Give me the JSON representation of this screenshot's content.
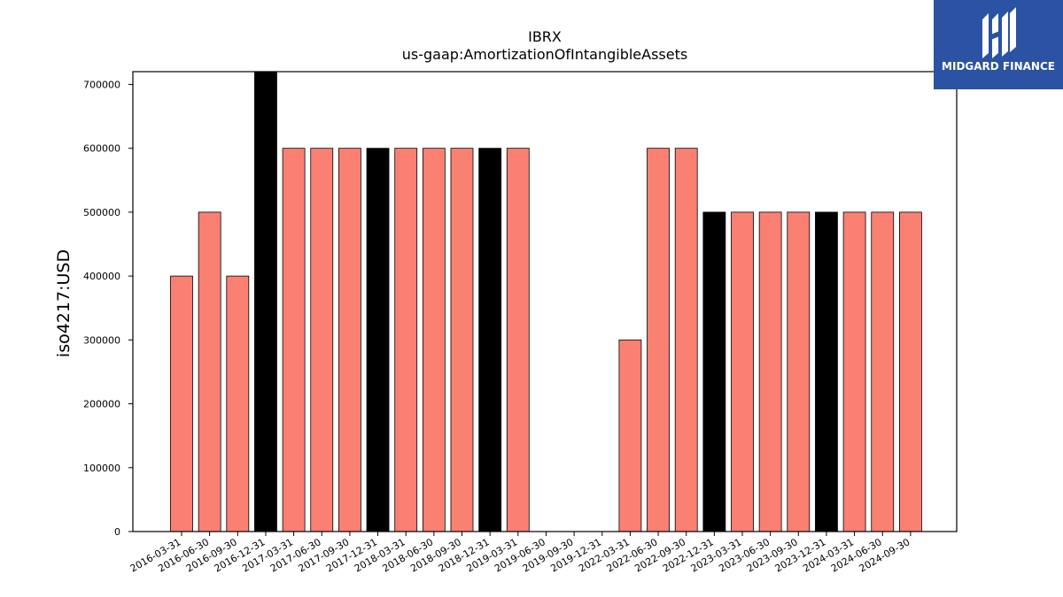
{
  "chart_data": {
    "type": "bar",
    "title": "IBRX",
    "subtitle": "us-gaap:AmortizationOfIntangibleAssets",
    "ylabel": "iso4217:USD",
    "xlabel": "",
    "ylim": [
      0,
      720000
    ],
    "yticks": [
      0,
      100000,
      200000,
      300000,
      400000,
      500000,
      600000,
      700000
    ],
    "grid": false,
    "categories": [
      "2016-03-31",
      "2016-06-30",
      "2016-09-30",
      "2016-12-31",
      "2017-03-31",
      "2017-06-30",
      "2017-09-30",
      "2017-12-31",
      "2018-03-31",
      "2018-06-30",
      "2018-09-30",
      "2018-12-31",
      "2019-03-31",
      "2019-06-30",
      "2019-09-30",
      "2019-12-31",
      "2022-03-31",
      "2022-06-30",
      "2022-09-30",
      "2022-12-31",
      "2023-03-31",
      "2023-06-30",
      "2023-09-30",
      "2023-12-31",
      "2024-03-31",
      "2024-06-30",
      "2024-09-30"
    ],
    "values": [
      400000,
      500000,
      400000,
      720000,
      600000,
      600000,
      600000,
      600000,
      600000,
      600000,
      600000,
      600000,
      600000,
      null,
      null,
      null,
      300000,
      600000,
      600000,
      500000,
      500000,
      500000,
      500000,
      500000,
      500000,
      500000,
      500000
    ],
    "colors": {
      "quarter": "#fa8072",
      "year_end": "#000000",
      "edge": "#000000"
    }
  },
  "brand": {
    "name": "MIDGARD FINANCE",
    "background": "#2c52a3"
  }
}
